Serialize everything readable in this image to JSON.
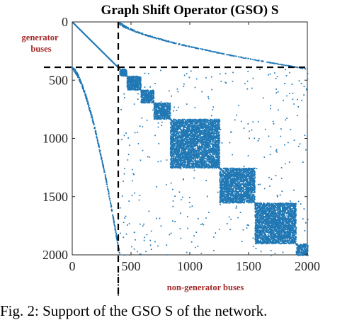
{
  "chart_data": {
    "type": "scatter",
    "title": "Graph Shift Operator (GSO) S",
    "xlabel": "",
    "ylabel": "",
    "xlim": [
      0,
      2000
    ],
    "ylim": [
      2000,
      0
    ],
    "x_ticks": [
      0,
      500,
      1000,
      1500,
      2000
    ],
    "y_ticks": [
      0,
      500,
      1000,
      1500,
      2000
    ],
    "y_axis_reversed": true,
    "marker_color": "#1f77b4",
    "partition_index": 400,
    "annotations": [
      {
        "text": "generator buses",
        "lines": [
          "generator",
          "buses"
        ],
        "color": "#a52a2a"
      },
      {
        "text": "non-generator buses",
        "color": "#a52a2a"
      }
    ],
    "blocks": [
      {
        "start": 400,
        "end": 460
      },
      {
        "start": 460,
        "end": 580
      },
      {
        "start": 580,
        "end": 690
      },
      {
        "start": 690,
        "end": 830
      },
      {
        "start": 830,
        "end": 1250
      },
      {
        "start": 1250,
        "end": 1550
      },
      {
        "start": 1550,
        "end": 1900
      },
      {
        "start": 1900,
        "end": 2000
      }
    ]
  },
  "caption": "Fig. 2: Support of the GSO S of the network."
}
